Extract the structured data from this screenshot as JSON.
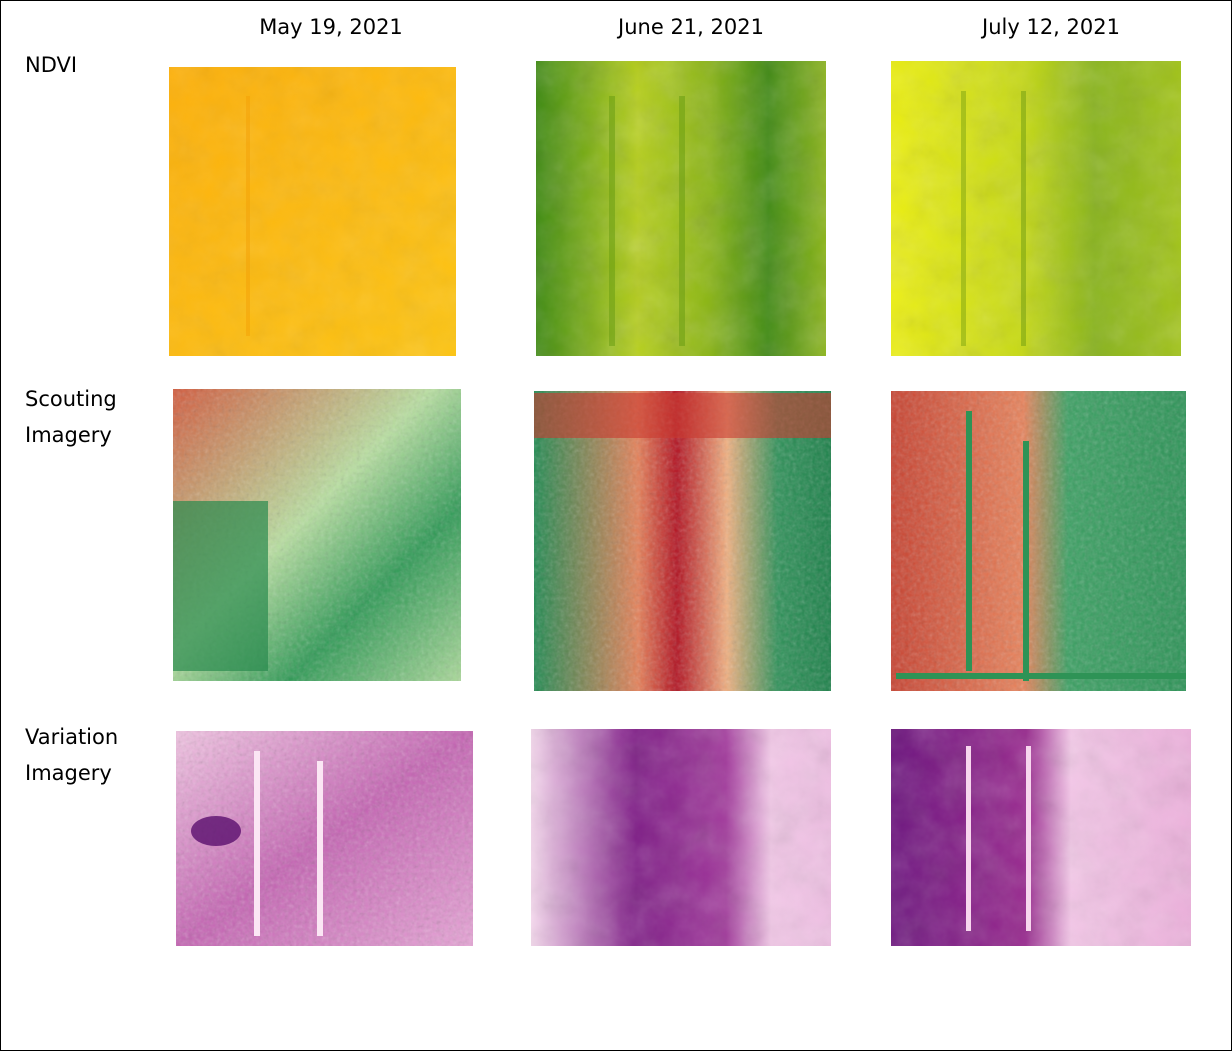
{
  "columns": [
    "May 19, 2021",
    "June 21, 2021",
    "July 12, 2021"
  ],
  "rows": [
    [
      "NDVI"
    ],
    [
      "Scouting",
      "Imagery"
    ],
    [
      "Variation",
      "Imagery"
    ]
  ]
}
